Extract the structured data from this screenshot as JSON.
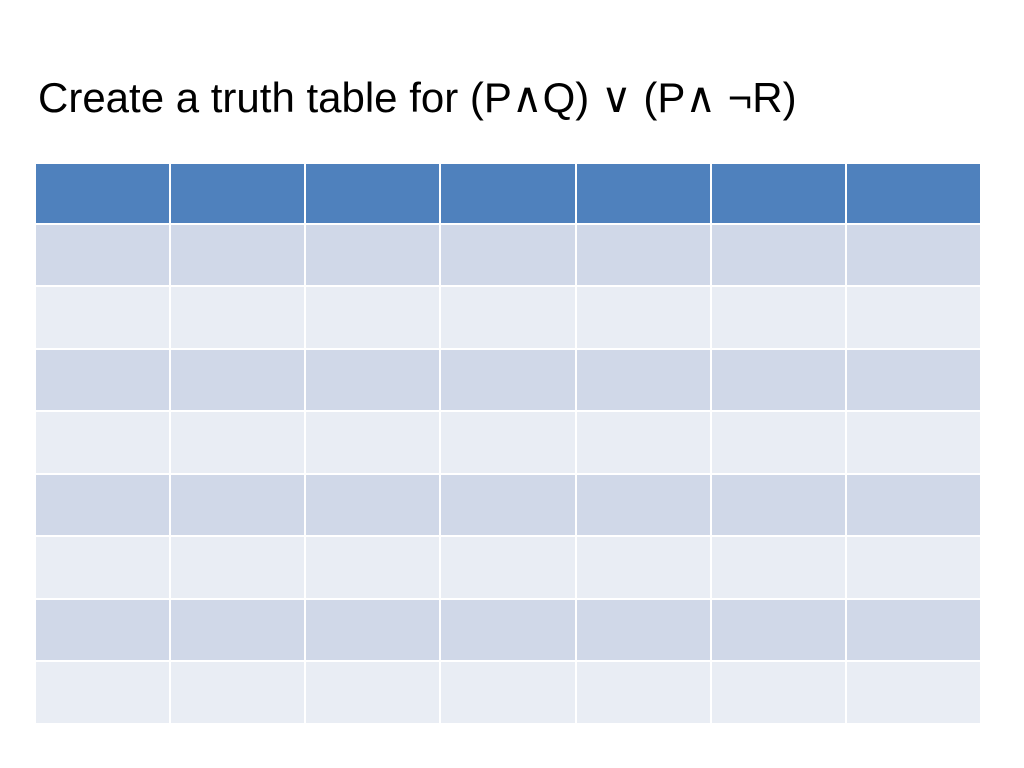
{
  "title": "Create a truth table for (P∧Q) ∨ (P∧ ¬R)"
}
